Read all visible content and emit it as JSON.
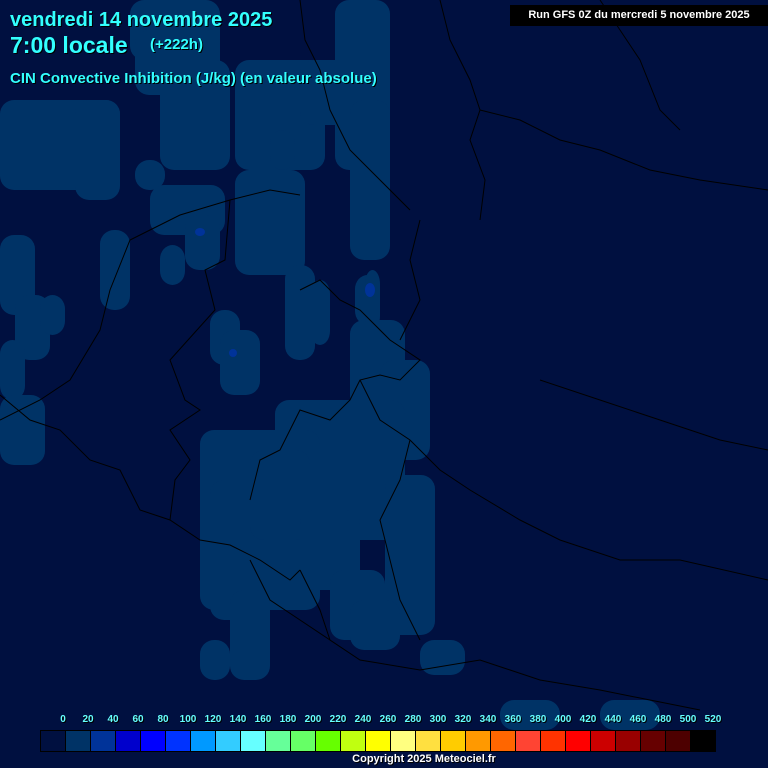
{
  "header": {
    "date": "vendredi 14 novembre 2025",
    "time": "7:00 locale",
    "lead": "(+222h)",
    "parameter": "CIN Convective Inhibition (J/kg) (en valeur absolue)",
    "run": "Run GFS 0Z du mercredi 5 novembre 2025"
  },
  "map": {
    "background_color": "#001040",
    "field_color": "#003366",
    "peak_color": "#003399",
    "border_color": "#000000"
  },
  "legend": {
    "labels": [
      "0",
      "20",
      "40",
      "60",
      "80",
      "100",
      "120",
      "140",
      "160",
      "180",
      "200",
      "220",
      "240",
      "260",
      "280",
      "300",
      "320",
      "340",
      "360",
      "380",
      "400",
      "420",
      "440",
      "460",
      "480",
      "500",
      "520"
    ],
    "colors": [
      "#001040",
      "#003366",
      "#003399",
      "#0000cc",
      "#0000ff",
      "#0033ff",
      "#0099ff",
      "#33ccff",
      "#66ffff",
      "#66ff99",
      "#66ff66",
      "#66ff00",
      "#c0ff10",
      "#ffff00",
      "#ffff80",
      "#ffe040",
      "#ffcc00",
      "#ff9900",
      "#ff6600",
      "#ff4433",
      "#ff3300",
      "#ff0000",
      "#cc0000",
      "#990000",
      "#660000",
      "#4d0000",
      "#000000"
    ]
  },
  "footer": {
    "copyright": "Copyright 2025 Meteociel.fr"
  }
}
